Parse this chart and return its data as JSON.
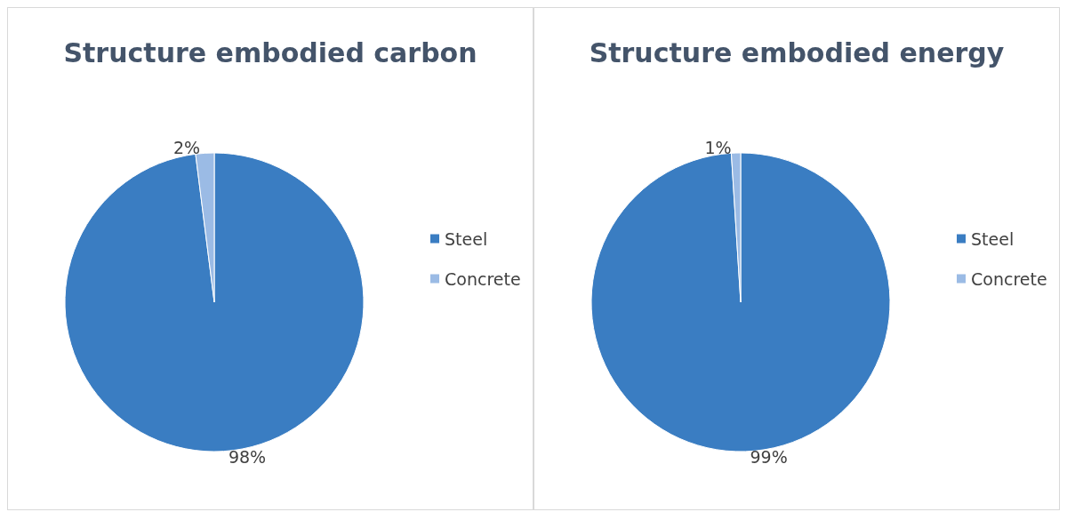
{
  "chart_data": [
    {
      "type": "pie",
      "title": "Structure embodied carbon",
      "categories": [
        "Steel",
        "Concrete"
      ],
      "values": [
        98,
        2
      ],
      "colors": [
        "#3a7dc2",
        "#9bbbe5"
      ],
      "value_labels": [
        "98%",
        "2%"
      ],
      "legend": "right"
    },
    {
      "type": "pie",
      "title": "Structure embodied energy",
      "categories": [
        "Steel",
        "Concrete"
      ],
      "values": [
        99,
        1
      ],
      "colors": [
        "#3a7dc2",
        "#9bbbe5"
      ],
      "value_labels": [
        "99%",
        "1%"
      ],
      "legend": "right"
    }
  ]
}
